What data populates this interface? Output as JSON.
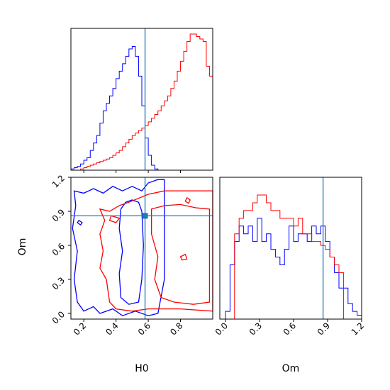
{
  "chart_data": {
    "type": "corner",
    "truth": {
      "H0": 0.58,
      "Om": 0.86
    },
    "colors": {
      "series_a": "#0000ff",
      "series_b": "#ff0000",
      "truth": "#1f77b4",
      "frame": "#000000"
    },
    "axes": {
      "H0": {
        "label": "H0",
        "lim": [
          0.12,
          1.0
        ],
        "ticks": [
          0.2,
          0.4,
          0.6,
          0.8
        ],
        "tick_labels": [
          "0.2",
          "0.4",
          "0.6",
          "0.8"
        ]
      },
      "Om": {
        "label": "Om",
        "lim": [
          -0.05,
          1.2
        ],
        "ticks": [
          0.0,
          0.3,
          0.6,
          0.9,
          1.2
        ],
        "tick_labels": [
          "0.0",
          "0.3",
          "0.6",
          "0.9",
          "1.2"
        ]
      }
    },
    "hist_H0": {
      "edges": [
        0.12,
        0.14,
        0.16,
        0.18,
        0.2,
        0.22,
        0.24,
        0.26,
        0.28,
        0.3,
        0.32,
        0.34,
        0.36,
        0.38,
        0.4,
        0.42,
        0.44,
        0.46,
        0.48,
        0.5,
        0.52,
        0.54,
        0.56,
        0.58,
        0.6,
        0.62,
        0.64,
        0.66,
        0.68,
        0.7,
        0.72,
        0.74,
        0.76,
        0.78,
        0.8,
        0.82,
        0.84,
        0.86,
        0.88,
        0.9,
        0.92,
        0.94,
        0.96,
        0.98,
        1.0
      ],
      "series": [
        {
          "color": "blue",
          "values": [
            0.5,
            1.0,
            1.5,
            2.5,
            4.0,
            5.0,
            8.0,
            11.0,
            14.0,
            19.0,
            24.0,
            27.0,
            30.0,
            33.0,
            37.0,
            40.0,
            43.0,
            46.0,
            49.0,
            50.0,
            46.0,
            38.0,
            26.0,
            13.0,
            6.0,
            2.0,
            0.5,
            0.0,
            0.0,
            0.0,
            0.0,
            0.0,
            0.0,
            0.0,
            0.0,
            0.0,
            0.0,
            0.0,
            0.0,
            0.0,
            0.0,
            0.0,
            0.0,
            0.0
          ]
        },
        {
          "color": "red",
          "values": [
            0.0,
            0.0,
            0.0,
            0.5,
            1.0,
            1.5,
            2.0,
            2.5,
            3.0,
            3.5,
            4.0,
            4.5,
            5.0,
            6.0,
            7.0,
            8.0,
            9.5,
            11.0,
            12.5,
            14.0,
            15.0,
            16.0,
            17.0,
            18.0,
            19.5,
            21.0,
            22.5,
            24.0,
            26.0,
            28.0,
            30.0,
            33.0,
            36.0,
            40.0,
            44.0,
            48.0,
            52.0,
            55.0,
            55.0,
            54.0,
            53.0,
            52.0,
            42.0,
            38.0
          ]
        }
      ]
    },
    "hist_Om": {
      "edges": [
        0.0,
        0.04,
        0.08,
        0.12,
        0.16,
        0.2,
        0.24,
        0.28,
        0.32,
        0.36,
        0.4,
        0.44,
        0.48,
        0.52,
        0.56,
        0.6,
        0.64,
        0.68,
        0.72,
        0.76,
        0.8,
        0.84,
        0.88,
        0.92,
        0.96,
        1.0,
        1.04,
        1.08,
        1.12,
        1.16,
        1.2
      ],
      "series": [
        {
          "color": "blue",
          "values": [
            1.0,
            7.0,
            10.0,
            12.0,
            11.0,
            12.0,
            10.0,
            13.0,
            10.0,
            11.0,
            9.0,
            8.0,
            7.0,
            9.0,
            12.0,
            10.0,
            11.0,
            11.0,
            10.0,
            12.0,
            11.0,
            12.0,
            10.0,
            8.0,
            6.0,
            4.0,
            4.0,
            2.0,
            1.0,
            0.5
          ]
        },
        {
          "color": "red",
          "values": [
            0.0,
            0.0,
            11.0,
            13.0,
            14.0,
            14.0,
            15.0,
            16.0,
            16.0,
            15.0,
            14.0,
            14.0,
            13.0,
            13.0,
            13.0,
            12.0,
            13.0,
            11.0,
            11.0,
            10.0,
            10.0,
            9.5,
            9.0,
            8.0,
            7.0,
            6.0,
            0.0,
            0.0,
            0.0,
            0.0
          ]
        }
      ]
    },
    "contours": {
      "series_a_color": "blue",
      "series_b_color": "red",
      "note_levels": [
        "outer",
        "inner"
      ]
    }
  }
}
